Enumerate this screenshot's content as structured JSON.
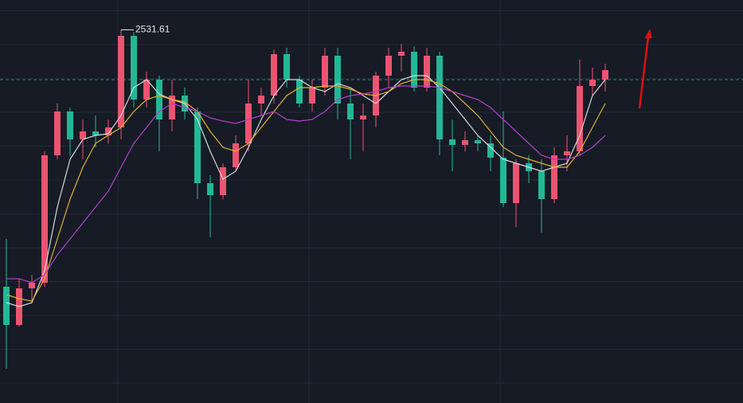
{
  "chart_data": {
    "type": "candlestick",
    "ylim": [
      2063,
      2569
    ],
    "up_color": "#eb5470",
    "down_color": "#22b896",
    "open": [
      2209,
      2161,
      2207,
      2214,
      2374,
      2429,
      2394,
      2404,
      2399,
      2409,
      2524,
      2444,
      2469,
      2419,
      2449,
      2429,
      2339,
      2324,
      2359,
      2389,
      2439,
      2449,
      2501,
      2469,
      2439,
      2459,
      2499,
      2439,
      2419,
      2424,
      2474,
      2499,
      2504,
      2459,
      2499,
      2394,
      2387,
      2393,
      2389,
      2371,
      2314,
      2364,
      2354,
      2319,
      2374,
      2379,
      2461,
      2469
    ],
    "high": [
      2269,
      2219,
      2224,
      2379,
      2439,
      2434,
      2419,
      2424,
      2419,
      2531.61,
      2529,
      2479,
      2474,
      2469,
      2459,
      2434,
      2349,
      2364,
      2399,
      2469,
      2459,
      2507,
      2509,
      2474,
      2469,
      2509,
      2509,
      2459,
      2439,
      2479,
      2509,
      2514,
      2511,
      2509,
      2504,
      2419,
      2404,
      2399,
      2399,
      2429,
      2369,
      2374,
      2369,
      2384,
      2399,
      2494,
      2484,
      2489
    ],
    "low": [
      2106,
      2159,
      2189,
      2209,
      2369,
      2374,
      2369,
      2384,
      2389,
      2394,
      2434,
      2434,
      2379,
      2404,
      2419,
      2319,
      2271,
      2319,
      2354,
      2379,
      2424,
      2439,
      2459,
      2434,
      2429,
      2449,
      2419,
      2369,
      2379,
      2409,
      2459,
      2479,
      2454,
      2454,
      2374,
      2354,
      2379,
      2379,
      2354,
      2309,
      2284,
      2339,
      2277,
      2314,
      2354,
      2374,
      2449,
      2454
    ],
    "close": [
      2161,
      2207,
      2214,
      2374,
      2429,
      2394,
      2404,
      2399,
      2409,
      2524,
      2444,
      2469,
      2419,
      2449,
      2429,
      2339,
      2324,
      2359,
      2389,
      2439,
      2449,
      2501,
      2469,
      2439,
      2459,
      2499,
      2439,
      2419,
      2424,
      2474,
      2499,
      2504,
      2459,
      2499,
      2394,
      2387,
      2393,
      2389,
      2371,
      2314,
      2364,
      2354,
      2319,
      2374,
      2379,
      2461,
      2469,
      2481
    ],
    "lines": [
      {
        "color": "#d8d8d8",
        "values": [
          2189,
          2184,
          2189,
          2229,
          2309,
          2369,
          2394,
          2399,
          2401,
          2424,
          2459,
          2469,
          2451,
          2444,
          2439,
          2419,
          2379,
          2344,
          2354,
          2384,
          2419,
          2449,
          2469,
          2469,
          2459,
          2454,
          2464,
          2459,
          2449,
          2439,
          2454,
          2469,
          2474,
          2474,
          2459,
          2439,
          2419,
          2399,
          2384,
          2369,
          2364,
          2359,
          2354,
          2359,
          2364,
          2399,
          2449,
          2469
        ]
      },
      {
        "color": "#e0b030",
        "values": [
          2199,
          2194,
          2191,
          2219,
          2269,
          2319,
          2359,
          2389,
          2399,
          2409,
          2429,
          2444,
          2449,
          2444,
          2441,
          2429,
          2404,
          2384,
          2379,
          2389,
          2409,
          2429,
          2449,
          2459,
          2459,
          2461,
          2461,
          2457,
          2451,
          2449,
          2454,
          2464,
          2469,
          2469,
          2464,
          2454,
          2439,
          2424,
          2404,
          2384,
          2374,
          2369,
          2364,
          2359,
          2359,
          2379,
          2409,
          2439
        ]
      },
      {
        "color": "#b040c8",
        "values": [
          2219,
          2219,
          2214,
          2224,
          2249,
          2269,
          2289,
          2309,
          2329,
          2359,
          2389,
          2409,
          2429,
          2439,
          2434,
          2429,
          2421,
          2417,
          2414,
          2419,
          2424,
          2429,
          2419,
          2417,
          2419,
          2429,
          2444,
          2449,
          2451,
          2454,
          2459,
          2461,
          2461,
          2461,
          2459,
          2454,
          2449,
          2444,
          2434,
          2419,
          2404,
          2389,
          2374,
          2369,
          2369,
          2374,
          2384,
          2399
        ]
      }
    ],
    "price_line": 2469,
    "annotation": {
      "index": 9,
      "text": "2531.61"
    }
  }
}
